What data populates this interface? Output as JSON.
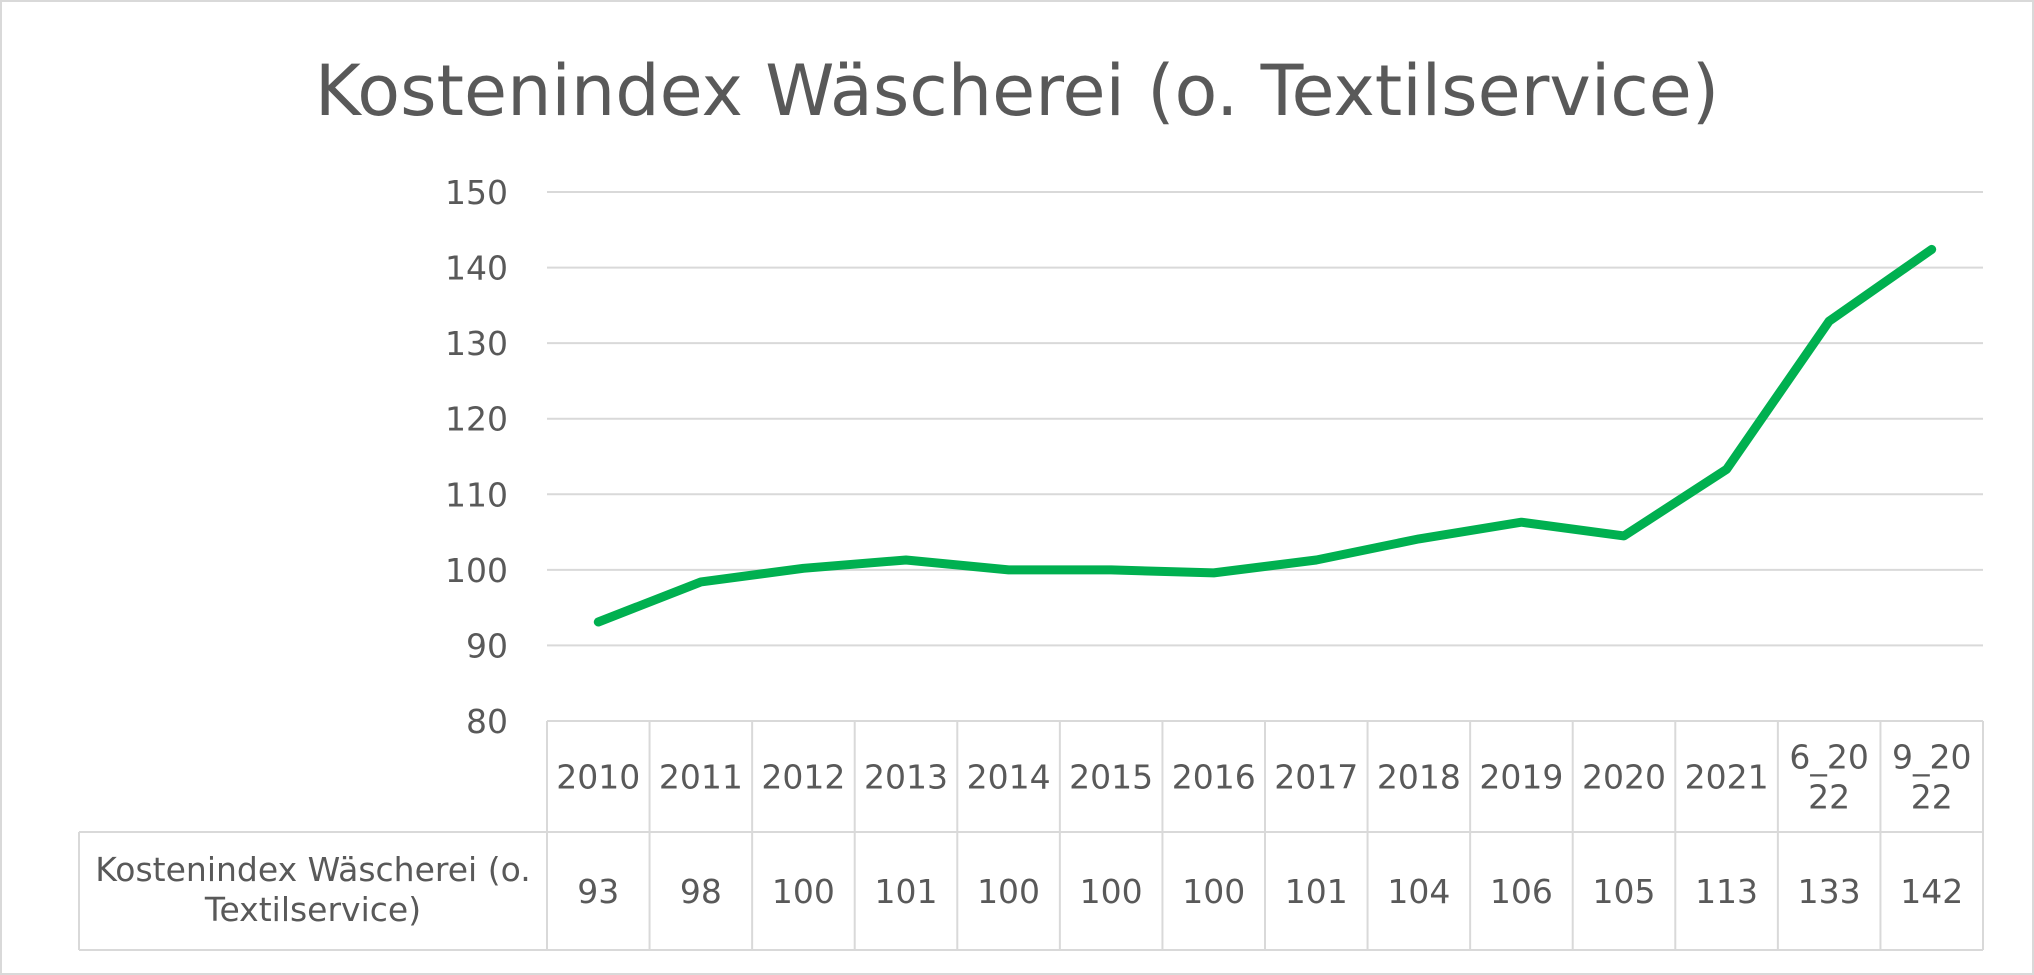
{
  "chart_data": {
    "type": "line",
    "title": "Kostenindex Wäscherei (o. Textilservice)",
    "categories": [
      "2010",
      "2011",
      "2012",
      "2013",
      "2014",
      "2015",
      "2016",
      "2017",
      "2018",
      "2019",
      "2020",
      "2021",
      "6_2022",
      "9_2022"
    ],
    "category_display": [
      [
        "2010"
      ],
      [
        "2011"
      ],
      [
        "2012"
      ],
      [
        "2013"
      ],
      [
        "2014"
      ],
      [
        "2015"
      ],
      [
        "2016"
      ],
      [
        "2017"
      ],
      [
        "2018"
      ],
      [
        "2019"
      ],
      [
        "2020"
      ],
      [
        "2021"
      ],
      [
        "6_20",
        "22"
      ],
      [
        "9_20",
        "22"
      ]
    ],
    "series": [
      {
        "name": "Kostenindex Wäscherei (o. Textilservice)",
        "name_lines": [
          "Kostenindex Wäscherei (o.",
          "Textilservice)"
        ],
        "values": [
          93.1,
          98.4,
          100.2,
          101.3,
          100,
          100,
          99.6,
          101.3,
          104.1,
          106.3,
          104.5,
          113.3,
          132.9,
          142.4
        ],
        "labels": [
          "93",
          "98",
          "100",
          "101",
          "100",
          "100",
          "100",
          "101",
          "104",
          "106",
          "105",
          "113",
          "133",
          "142"
        ],
        "color": "#00b050"
      }
    ],
    "yticks": [
      "80",
      "90",
      "100",
      "110",
      "120",
      "130",
      "140",
      "150"
    ],
    "ylim": [
      80,
      150
    ],
    "grid": true,
    "data_table": true,
    "legend": "none"
  }
}
